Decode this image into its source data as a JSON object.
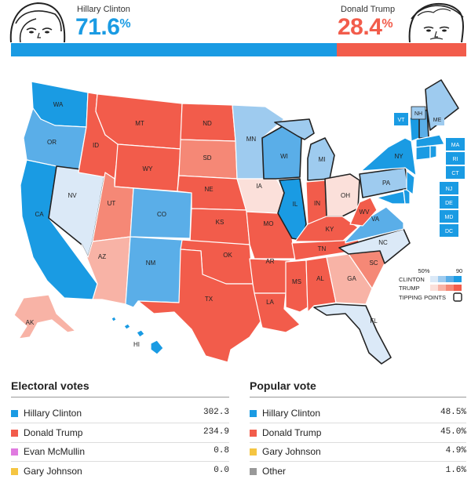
{
  "header": {
    "left": {
      "name": "Hillary Clinton",
      "pct_value": "71.6",
      "pct_sign": "%",
      "color": "#1a9be3"
    },
    "right": {
      "name": "Donald Trump",
      "pct_value": "28.4",
      "pct_sign": "%",
      "color": "#f25c4b"
    },
    "win_probability": {
      "clinton": 71.6,
      "trump": 28.4
    }
  },
  "legend": {
    "scale_low": "50%",
    "scale_high": "90",
    "clinton_label": "CLINTON",
    "trump_label": "TRUMP",
    "tipping_label": "TIPPING POINTS"
  },
  "map": {
    "states": {
      "WA": "WA",
      "OR": "OR",
      "CA": "CA",
      "ID": "ID",
      "NV": "NV",
      "MT": "MT",
      "WY": "WY",
      "UT": "UT",
      "AZ": "AZ",
      "CO": "CO",
      "NM": "NM",
      "ND": "ND",
      "SD": "SD",
      "NE": "NE",
      "KS": "KS",
      "OK": "OK",
      "TX": "TX",
      "MN": "MN",
      "IA": "IA",
      "MO": "MO",
      "AR": "AR",
      "LA": "LA",
      "WI": "WI",
      "IL": "IL",
      "MI": "MI",
      "IN": "IN",
      "OH": "OH",
      "KY": "KY",
      "TN": "TN",
      "MS": "MS",
      "AL": "AL",
      "GA": "GA",
      "FL": "FL",
      "SC": "SC",
      "NC": "NC",
      "VA": "VA",
      "WV": "WV",
      "PA": "PA",
      "NY": "NY",
      "VT": "VT",
      "NH": "NH",
      "ME": "ME",
      "MA": "MA",
      "RI": "RI",
      "CT": "CT",
      "NJ": "NJ",
      "DE": "DE",
      "MD": "MD",
      "DC": "DC",
      "AK": "AK",
      "HI": "HI"
    }
  },
  "colors": {
    "dem_strong": "#1a9be3",
    "dem_likely": "#5aaee8",
    "dem_lean": "#9ecbef",
    "dem_tilt": "#dbe9f7",
    "rep_strong": "#f25c4b",
    "rep_likely": "#f58876",
    "rep_lean": "#f8b3a6",
    "rep_tilt": "#fbe0da"
  },
  "electoral": {
    "title": "Electoral votes",
    "rows": [
      {
        "name": "Hillary Clinton",
        "value": "302.3",
        "color": "#1a9be3"
      },
      {
        "name": "Donald Trump",
        "value": "234.9",
        "color": "#f25c4b"
      },
      {
        "name": "Evan McMullin",
        "value": "0.8",
        "color": "#e07be0"
      },
      {
        "name": "Gary Johnson",
        "value": "0.0",
        "color": "#f5c542"
      }
    ]
  },
  "popular": {
    "title": "Popular vote",
    "rows": [
      {
        "name": "Hillary Clinton",
        "value": "48.5%",
        "color": "#1a9be3"
      },
      {
        "name": "Donald Trump",
        "value": "45.0%",
        "color": "#f25c4b"
      },
      {
        "name": "Gary Johnson",
        "value": "4.9%",
        "color": "#f5c542"
      },
      {
        "name": "Other",
        "value": "1.6%",
        "color": "#999999"
      }
    ]
  }
}
